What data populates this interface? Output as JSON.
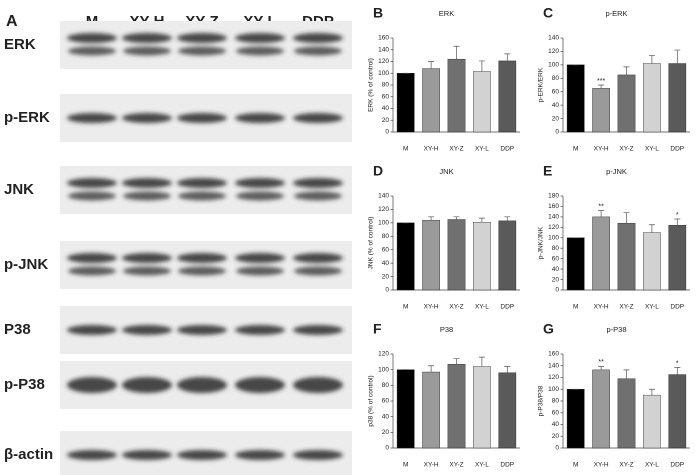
{
  "blot": {
    "panel": "A",
    "lanes": [
      "M",
      "XY-H",
      "XY-Z",
      "XY-L",
      "DDP"
    ],
    "proteins": [
      "ERK",
      "p-ERK",
      "JNK",
      "p-JNK",
      "P38",
      "p-P38",
      "β-actin"
    ]
  },
  "chart_data": [
    {
      "type": "bar",
      "panel": "B",
      "title": "ERK",
      "ylabel": "ERK (% of control)",
      "categories": [
        "M",
        "XY-H",
        "XY-Z",
        "XY-L",
        "DDP"
      ],
      "values": [
        100,
        108,
        124,
        103,
        121
      ],
      "errors": [
        0,
        12,
        22,
        18,
        12
      ],
      "colors": [
        "#000000",
        "#9a9a9a",
        "#707070",
        "#d2d2d2",
        "#5a5a5a"
      ],
      "significance": [
        null,
        null,
        null,
        null,
        null
      ],
      "ylim": [
        0,
        160
      ],
      "yticks": [
        0,
        20,
        40,
        60,
        80,
        100,
        120,
        140,
        160
      ]
    },
    {
      "type": "bar",
      "panel": "C",
      "title": "p-ERK",
      "ylabel": "p-ERK/ERK",
      "categories": [
        "M",
        "XY-H",
        "XY-Z",
        "XY-L",
        "DDP"
      ],
      "values": [
        100,
        65,
        85,
        102,
        102
      ],
      "errors": [
        0,
        5,
        12,
        12,
        20
      ],
      "colors": [
        "#000000",
        "#9a9a9a",
        "#707070",
        "#d2d2d2",
        "#5a5a5a"
      ],
      "significance": [
        null,
        "***",
        null,
        null,
        null
      ],
      "ylim": [
        0,
        140
      ],
      "yticks": [
        0,
        20,
        40,
        60,
        80,
        100,
        120,
        140
      ]
    },
    {
      "type": "bar",
      "panel": "D",
      "title": "JNK",
      "ylabel": "JNK (% of control)",
      "categories": [
        "M",
        "XY-H",
        "XY-Z",
        "XY-L",
        "DDP"
      ],
      "values": [
        100,
        104,
        105,
        101,
        103
      ],
      "errors": [
        0,
        5,
        4,
        6,
        6
      ],
      "colors": [
        "#000000",
        "#9a9a9a",
        "#707070",
        "#d2d2d2",
        "#5a5a5a"
      ],
      "significance": [
        null,
        null,
        null,
        null,
        null
      ],
      "ylim": [
        0,
        140
      ],
      "yticks": [
        0,
        20,
        40,
        60,
        80,
        100,
        120,
        140
      ]
    },
    {
      "type": "bar",
      "panel": "E",
      "title": "p-JNK",
      "ylabel": "p-JNK/JNK",
      "categories": [
        "M",
        "XY-H",
        "XY-Z",
        "XY-L",
        "DDP"
      ],
      "values": [
        100,
        140,
        128,
        110,
        124
      ],
      "errors": [
        0,
        12,
        20,
        15,
        12
      ],
      "colors": [
        "#000000",
        "#9a9a9a",
        "#707070",
        "#d2d2d2",
        "#5a5a5a"
      ],
      "significance": [
        null,
        "**",
        null,
        null,
        "*"
      ],
      "ylim": [
        0,
        180
      ],
      "yticks": [
        0,
        20,
        40,
        60,
        80,
        100,
        120,
        140,
        160,
        180
      ]
    },
    {
      "type": "bar",
      "panel": "F",
      "title": "P38",
      "ylabel": "p38 (% of control)",
      "categories": [
        "M",
        "XY-H",
        "XY-Z",
        "XY-L",
        "DDP"
      ],
      "values": [
        100,
        97,
        107,
        104,
        96
      ],
      "errors": [
        0,
        8,
        7,
        12,
        8
      ],
      "colors": [
        "#000000",
        "#9a9a9a",
        "#707070",
        "#d2d2d2",
        "#5a5a5a"
      ],
      "significance": [
        null,
        null,
        null,
        null,
        null
      ],
      "ylim": [
        0,
        120
      ],
      "yticks": [
        0,
        20,
        40,
        60,
        80,
        100,
        120
      ]
    },
    {
      "type": "bar",
      "panel": "G",
      "title": "p-P38",
      "ylabel": "p-P38/P38",
      "categories": [
        "M",
        "XY-H",
        "XY-Z",
        "XY-L",
        "DDP"
      ],
      "values": [
        100,
        133,
        118,
        90,
        125
      ],
      "errors": [
        0,
        6,
        15,
        10,
        12
      ],
      "colors": [
        "#000000",
        "#9a9a9a",
        "#707070",
        "#d2d2d2",
        "#5a5a5a"
      ],
      "significance": [
        null,
        "**",
        null,
        null,
        "*"
      ],
      "ylim": [
        0,
        160
      ],
      "yticks": [
        0,
        20,
        40,
        60,
        80,
        100,
        120,
        140,
        160
      ]
    }
  ]
}
